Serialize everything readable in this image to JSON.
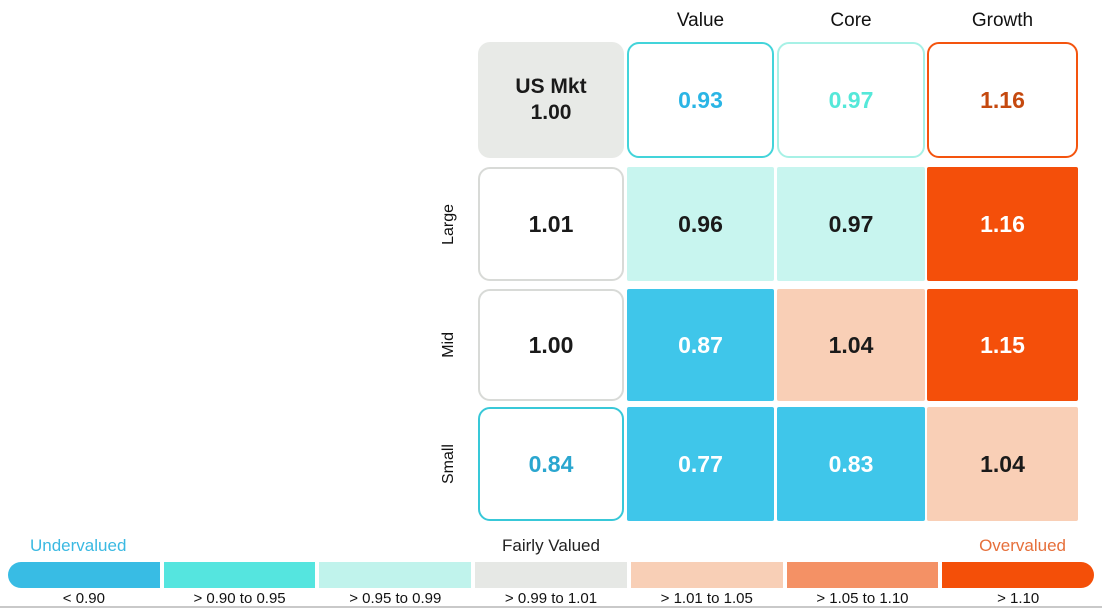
{
  "palette": {
    "undervalued_strong": "#3fc6ea",
    "undervalued_mid": "#55e5df",
    "undervalued_light": "#c8f5ef",
    "fairly_valued_gray": "#e8eae7",
    "overvalued_light": "#f9cfb6",
    "overvalued_mid": "#f49165",
    "overvalued_strong": "#f44f0a"
  },
  "column_headers": [
    "Value",
    "Core",
    "Growth"
  ],
  "row_headers": [
    "Large",
    "Mid",
    "Small"
  ],
  "cells": {
    "us_mkt": {
      "label": "US Mkt",
      "value": "1.00",
      "bg": "#e8eae7",
      "fg": "#1a1a1a"
    },
    "mkt_value": {
      "value": "0.93",
      "fg": "#2ab5e5",
      "border": "#43d4da"
    },
    "mkt_core": {
      "value": "0.97",
      "fg": "#55e8d9",
      "border": "#a7f1e6"
    },
    "mkt_growth": {
      "value": "1.16",
      "fg": "#c5490f",
      "border": "#f4540e"
    },
    "large_blend": {
      "value": "1.01",
      "fg": "#1a1a1a",
      "border": "#d8dad7"
    },
    "large_value": {
      "value": "0.96",
      "bg": "#c8f5ef",
      "fg": "#1a1a1a"
    },
    "large_core": {
      "value": "0.97",
      "bg": "#c8f5ef",
      "fg": "#1a1a1a"
    },
    "large_growth": {
      "value": "1.16",
      "bg": "#f44f0a",
      "fg": "#ffffff"
    },
    "mid_blend": {
      "value": "1.00",
      "fg": "#1a1a1a",
      "border": "#d8dad7"
    },
    "mid_value": {
      "value": "0.87",
      "bg": "#3fc6ea",
      "fg": "#ffffff"
    },
    "mid_core": {
      "value": "1.04",
      "bg": "#f9cfb6",
      "fg": "#1a1a1a"
    },
    "mid_growth": {
      "value": "1.15",
      "bg": "#f44f0a",
      "fg": "#ffffff"
    },
    "small_blend": {
      "value": "0.84",
      "fg": "#2aa6cf",
      "border": "#38c8d8"
    },
    "small_value": {
      "value": "0.77",
      "bg": "#3fc6ea",
      "fg": "#ffffff"
    },
    "small_core": {
      "value": "0.83",
      "bg": "#3fc6ea",
      "fg": "#ffffff"
    },
    "small_growth": {
      "value": "1.04",
      "bg": "#f9cfb6",
      "fg": "#1a1a1a"
    }
  },
  "legend": {
    "undervalued_label": "Undervalued",
    "undervalued_color": "#3ab9e2",
    "fairly_valued_label": "Fairly Valued",
    "fairly_valued_color": "#222222",
    "overvalued_label": "Overvalued",
    "overvalued_color": "#e66f3a",
    "segments": [
      {
        "label": "< 0.90",
        "color": "#38bce4"
      },
      {
        "label": "> 0.90 to 0.95",
        "color": "#55e5df"
      },
      {
        "label": "> 0.95 to 0.99",
        "color": "#c0f3ec"
      },
      {
        "label": "> 0.99 to 1.01",
        "color": "#e6e8e5"
      },
      {
        "label": "> 1.01 to 1.05",
        "color": "#f8cfb6"
      },
      {
        "label": "> 1.05 to 1.10",
        "color": "#f49165"
      },
      {
        "label": "> 1.10",
        "color": "#f44f08"
      }
    ]
  },
  "chart_data": {
    "type": "heatmap",
    "title": "",
    "column_labels": [
      "",
      "Value",
      "Core",
      "Growth"
    ],
    "row_labels": [
      "US Mkt",
      "Large",
      "Mid",
      "Small"
    ],
    "values": [
      [
        1.0,
        0.93,
        0.97,
        1.16
      ],
      [
        1.01,
        0.96,
        0.97,
        1.16
      ],
      [
        1.0,
        0.87,
        1.04,
        1.15
      ],
      [
        0.84,
        0.77,
        0.83,
        1.04
      ]
    ],
    "legend_bins": [
      "< 0.90",
      "> 0.90 to 0.95",
      "> 0.95 to 0.99",
      "> 0.99 to 1.01",
      "> 1.01 to 1.05",
      "> 1.05 to 1.10",
      "> 1.10"
    ],
    "legend_axis_labels": [
      "Undervalued",
      "Fairly Valued",
      "Overvalued"
    ],
    "legend_position": "bottom"
  }
}
